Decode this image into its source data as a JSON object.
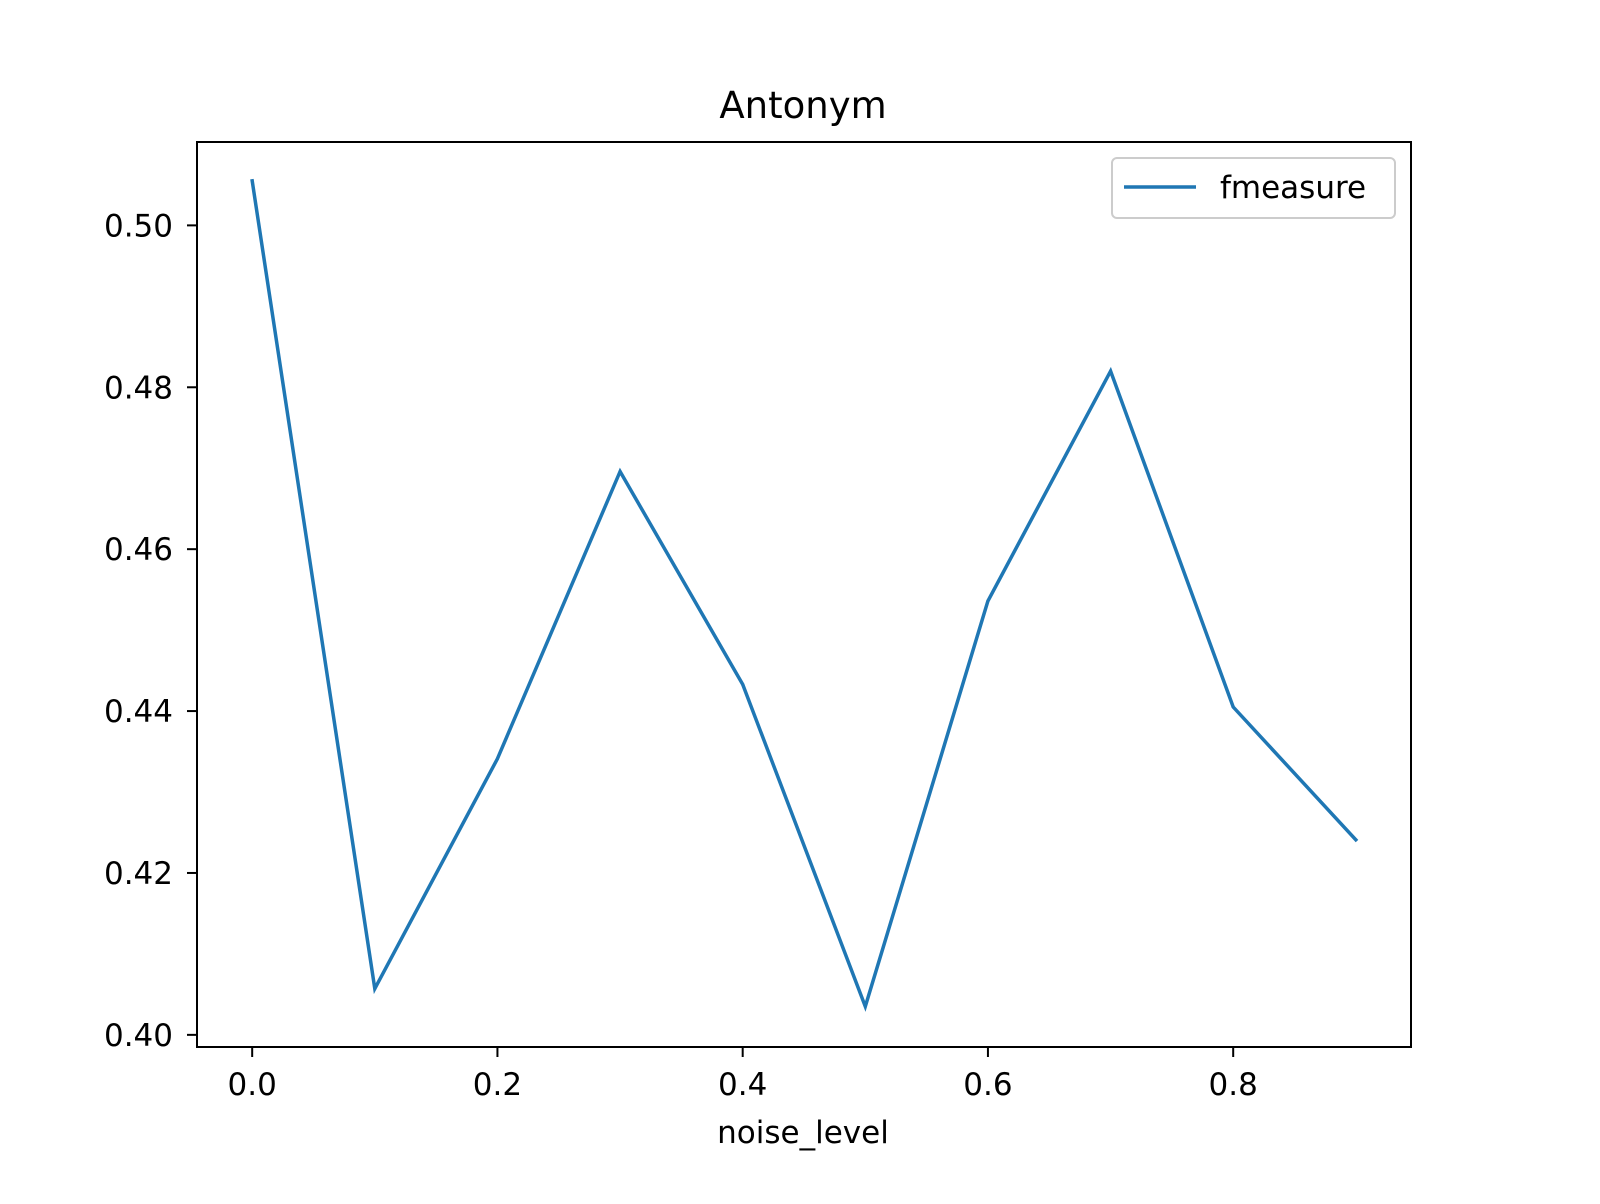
{
  "chart_data": {
    "type": "line",
    "title": "Antonym",
    "xlabel": "noise_level",
    "ylabel": "",
    "x": [
      0.0,
      0.1,
      0.2,
      0.3,
      0.4,
      0.5,
      0.6,
      0.7,
      0.8,
      0.9
    ],
    "series": [
      {
        "name": "fmeasure",
        "color": "#1f77b4",
        "values": [
          0.5055,
          0.4057,
          0.4341,
          0.4696,
          0.4433,
          0.4035,
          0.4536,
          0.482,
          0.4405,
          0.4241
        ]
      }
    ],
    "xlim": [
      -0.045,
      0.945
    ],
    "ylim": [
      0.3985,
      0.5103
    ],
    "xticks": [
      0.0,
      0.2,
      0.4,
      0.6,
      0.8
    ],
    "xtick_labels": [
      "0.0",
      "0.2",
      "0.4",
      "0.6",
      "0.8"
    ],
    "yticks": [
      0.4,
      0.42,
      0.44,
      0.46,
      0.48,
      0.5
    ],
    "ytick_labels": [
      "0.40",
      "0.42",
      "0.44",
      "0.46",
      "0.48",
      "0.50"
    ],
    "grid": false,
    "legend_position": "top-right"
  }
}
